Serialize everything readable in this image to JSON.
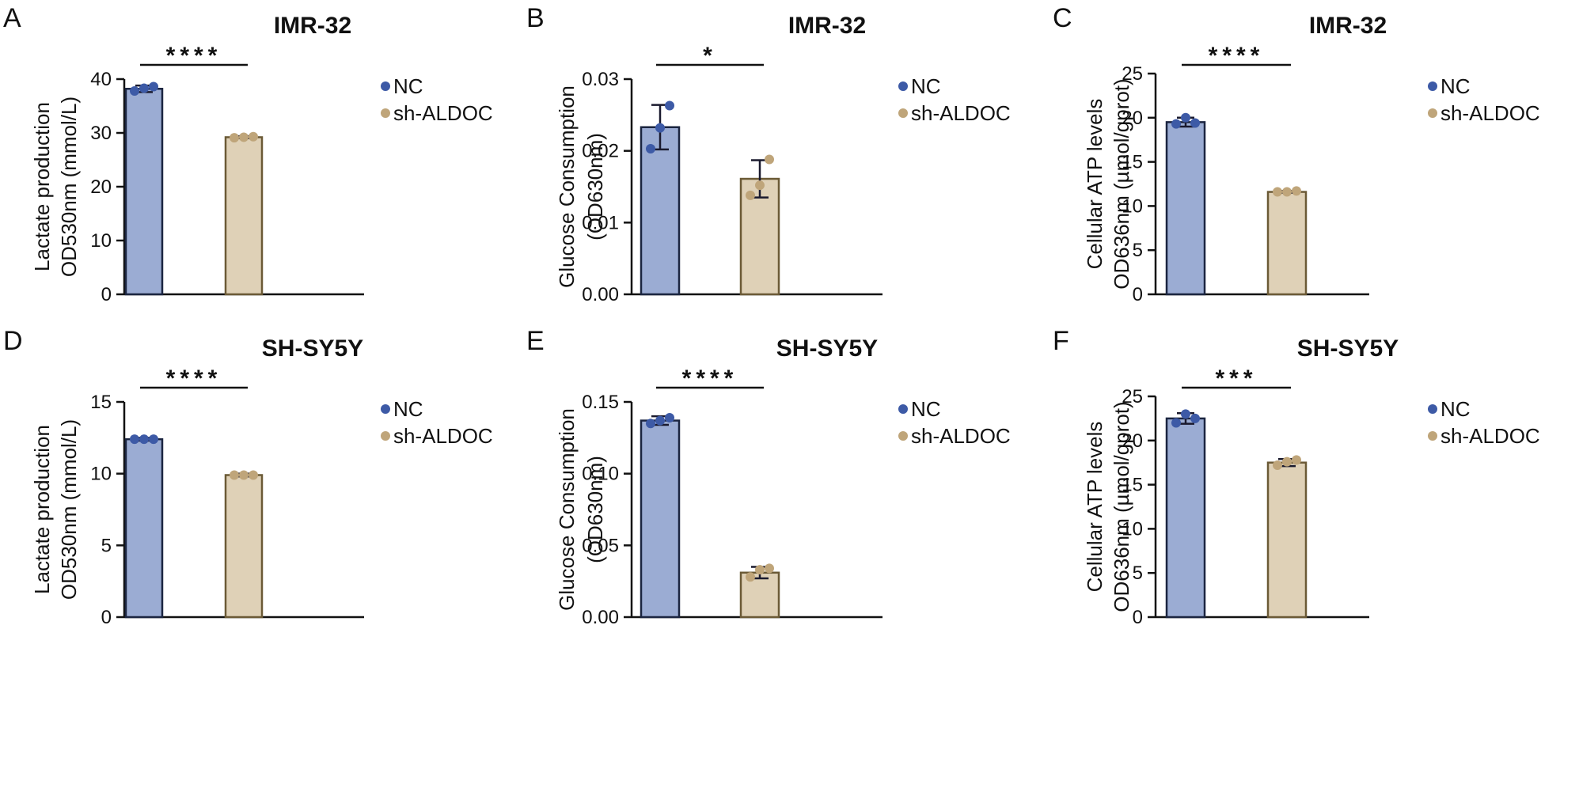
{
  "colors": {
    "nc_fill": "#9bacd3",
    "nc_edge": "#1b2540",
    "nc_point": "#3d5aa6",
    "sh_fill": "#dfd1b7",
    "sh_edge": "#6b5a36",
    "sh_point": "#bfa57a"
  },
  "legend": {
    "nc": "NC",
    "sh": "sh-ALDOC"
  },
  "chart_data": [
    {
      "panel": "A",
      "type": "bar",
      "title": "IMR-32",
      "ylabel_lines": [
        "Lactate production",
        "OD530nm (mmol/L)"
      ],
      "ylim": [
        0,
        40
      ],
      "yticks": [
        0,
        10,
        20,
        30,
        40
      ],
      "ytick_labels": [
        "0",
        "10",
        "20",
        "30",
        "40"
      ],
      "categories": [
        "NC",
        "sh-ALDOC"
      ],
      "values": [
        38.2,
        29.2
      ],
      "errors": [
        0.6,
        0.2
      ],
      "points": [
        [
          37.8,
          38.3,
          38.6
        ],
        [
          29.1,
          29.2,
          29.3
        ]
      ],
      "significance": "****"
    },
    {
      "panel": "B",
      "type": "bar",
      "title": "IMR-32",
      "ylabel_lines": [
        "Glucose Consumption",
        "(OD630nm)"
      ],
      "ylim": [
        0,
        0.03
      ],
      "yticks": [
        0,
        0.01,
        0.02,
        0.03
      ],
      "ytick_labels": [
        "0.00",
        "0.01",
        "0.02",
        "0.03"
      ],
      "categories": [
        "NC",
        "sh-ALDOC"
      ],
      "values": [
        0.0233,
        0.0161
      ],
      "errors": [
        0.0031,
        0.0026
      ],
      "points": [
        [
          0.0203,
          0.0232,
          0.0263
        ],
        [
          0.0138,
          0.0152,
          0.0188
        ]
      ],
      "significance": "*"
    },
    {
      "panel": "C",
      "type": "bar",
      "title": "IMR-32",
      "ylabel_lines": [
        "Cellular ATP levels",
        "OD636nm (µmol/gprot)"
      ],
      "ylim": [
        0,
        25
      ],
      "yticks": [
        0,
        5,
        10,
        15,
        20,
        25
      ],
      "ytick_labels": [
        "0",
        "5",
        "10",
        "15",
        "20",
        "25"
      ],
      "categories": [
        "NC",
        "sh-ALDOC"
      ],
      "values": [
        19.5,
        11.6
      ],
      "errors": [
        0.5,
        0.1
      ],
      "points": [
        [
          19.3,
          20.0,
          19.4
        ],
        [
          11.6,
          11.6,
          11.7
        ]
      ],
      "significance": "****"
    },
    {
      "panel": "D",
      "type": "bar",
      "title": "SH-SY5Y",
      "ylabel_lines": [
        "Lactate production",
        "OD530nm (mmol/L)"
      ],
      "ylim": [
        0,
        15
      ],
      "yticks": [
        0,
        5,
        10,
        15
      ],
      "ytick_labels": [
        "0",
        "5",
        "10",
        "15"
      ],
      "categories": [
        "NC",
        "sh-ALDOC"
      ],
      "values": [
        12.4,
        9.9
      ],
      "errors": [
        0.1,
        0.1
      ],
      "points": [
        [
          12.4,
          12.4,
          12.4
        ],
        [
          9.9,
          9.9,
          9.9
        ]
      ],
      "significance": "****"
    },
    {
      "panel": "E",
      "type": "bar",
      "title": "SH-SY5Y",
      "ylabel_lines": [
        "Glucose Consumption",
        "(OD630nm)"
      ],
      "ylim": [
        0,
        0.15
      ],
      "yticks": [
        0,
        0.05,
        0.1,
        0.15
      ],
      "ytick_labels": [
        "0.00",
        "0.05",
        "0.10",
        "0.15"
      ],
      "categories": [
        "NC",
        "sh-ALDOC"
      ],
      "values": [
        0.137,
        0.031
      ],
      "errors": [
        0.003,
        0.004
      ],
      "points": [
        [
          0.135,
          0.137,
          0.139
        ],
        [
          0.028,
          0.033,
          0.034
        ]
      ],
      "significance": "****"
    },
    {
      "panel": "F",
      "type": "bar",
      "title": "SH-SY5Y",
      "ylabel_lines": [
        "Cellular ATP levels",
        "OD636nm (µmol/gprot)"
      ],
      "ylim": [
        0,
        25
      ],
      "yticks": [
        0,
        5,
        10,
        15,
        20,
        25
      ],
      "ytick_labels": [
        "0",
        "5",
        "10",
        "15",
        "20",
        "25"
      ],
      "categories": [
        "NC",
        "sh-ALDOC"
      ],
      "values": [
        22.5,
        17.5
      ],
      "errors": [
        0.6,
        0.4
      ],
      "points": [
        [
          22.0,
          23.0,
          22.5
        ],
        [
          17.2,
          17.6,
          17.8
        ]
      ],
      "significance": "***"
    }
  ]
}
